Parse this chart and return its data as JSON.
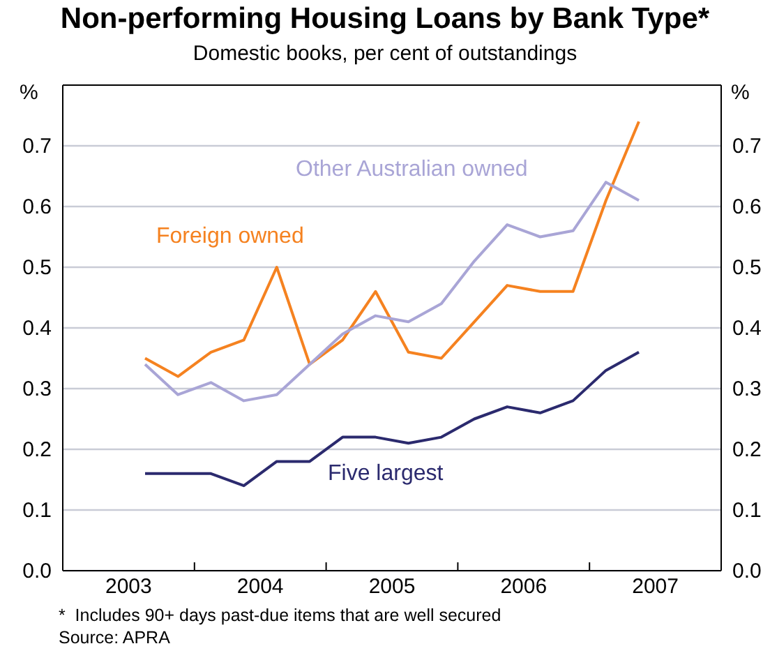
{
  "chart_data": {
    "type": "line",
    "title": "Non-performing Housing Loans by Bank Type*",
    "subtitle": "Domestic books, per cent of outstandings",
    "ylabel": "%",
    "y2label": "%",
    "x": [
      2003.625,
      2003.875,
      2004.125,
      2004.375,
      2004.625,
      2004.875,
      2005.125,
      2005.375,
      2005.625,
      2005.875,
      2006.125,
      2006.375,
      2006.625,
      2006.875,
      2007.125,
      2007.375
    ],
    "series": [
      {
        "name": "Foreign owned",
        "color": "#f58220",
        "values": [
          0.35,
          0.32,
          0.36,
          0.38,
          0.5,
          0.34,
          0.38,
          0.46,
          0.36,
          0.35,
          0.41,
          0.47,
          0.46,
          0.46,
          0.61,
          0.74
        ]
      },
      {
        "name": "Other Australian owned",
        "color": "#a9a5d6",
        "values": [
          0.34,
          0.29,
          0.31,
          0.28,
          0.29,
          0.34,
          0.39,
          0.42,
          0.41,
          0.44,
          0.51,
          0.57,
          0.55,
          0.56,
          0.64,
          0.61
        ]
      },
      {
        "name": "Five largest",
        "color": "#2b2a6e",
        "values": [
          0.16,
          0.16,
          0.16,
          0.14,
          0.18,
          0.18,
          0.22,
          0.22,
          0.21,
          0.22,
          0.25,
          0.27,
          0.26,
          0.28,
          0.33,
          0.36
        ]
      }
    ],
    "xlim": [
      2003,
      2008
    ],
    "xticks": [
      {
        "value": 2003,
        "label": null
      },
      {
        "value": 2003.5,
        "label": "2003"
      },
      {
        "value": 2004,
        "label": null
      },
      {
        "value": 2004.5,
        "label": "2004"
      },
      {
        "value": 2005,
        "label": null
      },
      {
        "value": 2005.5,
        "label": "2005"
      },
      {
        "value": 2006,
        "label": null
      },
      {
        "value": 2006.5,
        "label": "2006"
      },
      {
        "value": 2007,
        "label": null
      },
      {
        "value": 2007.5,
        "label": "2007"
      },
      {
        "value": 2008,
        "label": null
      }
    ],
    "ylim": [
      0,
      0.8
    ],
    "yticks": [
      {
        "value": 0,
        "label": "0.0"
      },
      {
        "value": 0.1,
        "label": "0.1"
      },
      {
        "value": 0.2,
        "label": "0.2"
      },
      {
        "value": 0.3,
        "label": "0.3"
      },
      {
        "value": 0.4,
        "label": "0.4"
      },
      {
        "value": 0.5,
        "label": "0.5"
      },
      {
        "value": 0.6,
        "label": "0.6"
      },
      {
        "value": 0.7,
        "label": "0.7"
      }
    ],
    "y2lim": [
      0,
      0.8
    ],
    "y2ticks": [
      {
        "value": 0,
        "label": "0.0"
      },
      {
        "value": 0.1,
        "label": "0.1"
      },
      {
        "value": 0.2,
        "label": "0.2"
      },
      {
        "value": 0.3,
        "label": "0.3"
      },
      {
        "value": 0.4,
        "label": "0.4"
      },
      {
        "value": 0.5,
        "label": "0.5"
      },
      {
        "value": 0.6,
        "label": "0.6"
      },
      {
        "value": 0.7,
        "label": "0.7"
      }
    ],
    "grid": "y",
    "legend": false,
    "marker": "none",
    "line_style": "solid",
    "annotations": [
      "*  Includes 90+ days past-due items that are well secured",
      "Source: APRA"
    ]
  }
}
